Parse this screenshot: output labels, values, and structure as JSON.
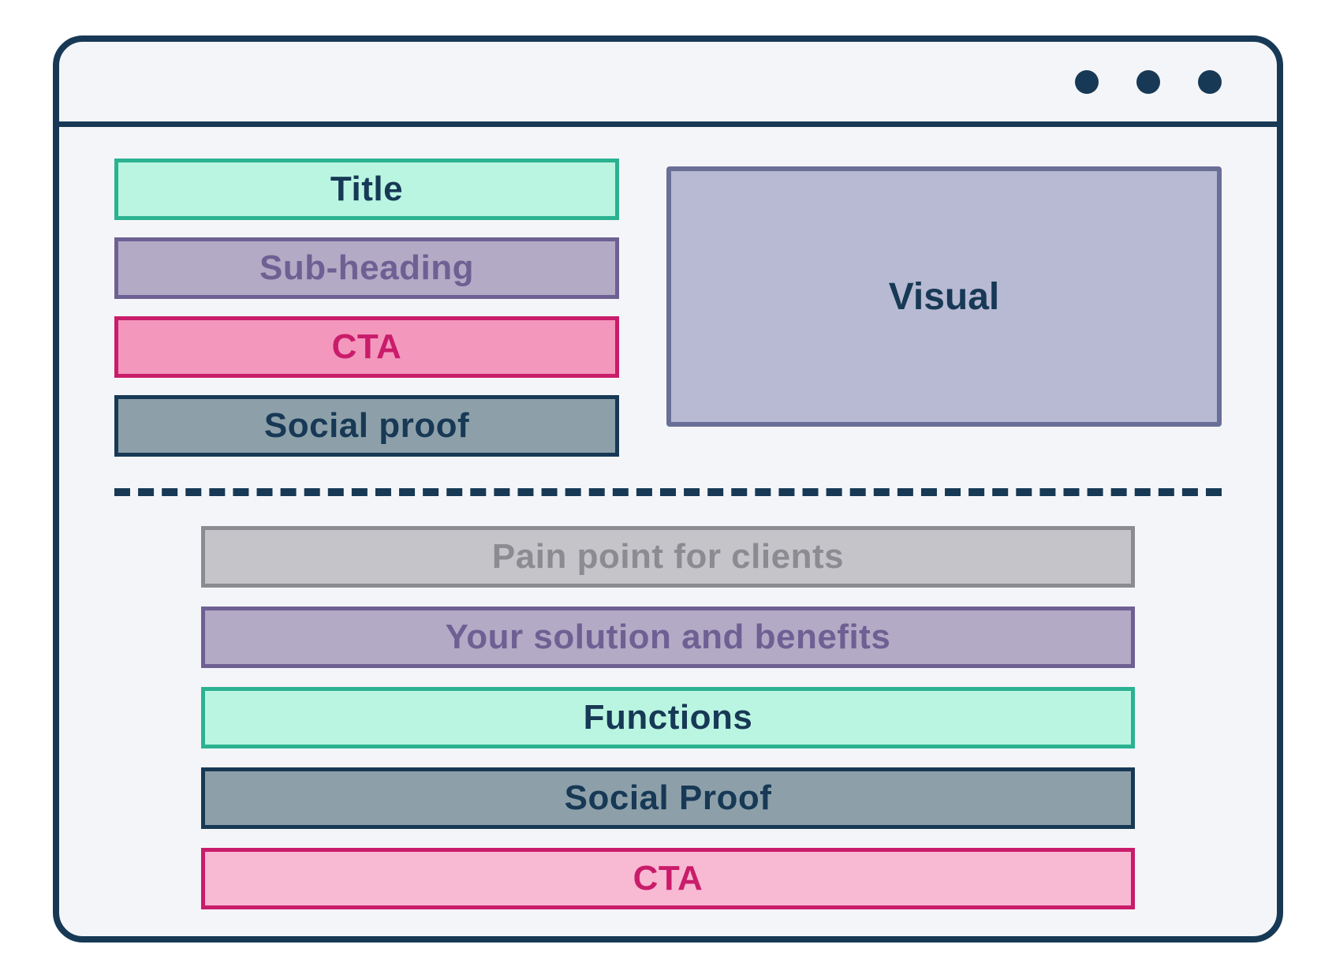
{
  "diagram": {
    "type": "wireframe",
    "background": "#ffffff",
    "window": {
      "bg": "#f4f5f8",
      "border_color": "#173955",
      "border_width": 8,
      "border_radius": 38,
      "dot_color": "#173955",
      "dot_count": 3,
      "titlebar_divider_color": "#173955"
    },
    "hero": {
      "left": [
        {
          "label": "Title",
          "bg": "#baf5e2",
          "border": "#2bb291",
          "text": "#173955"
        },
        {
          "label": "Sub-heading",
          "bg": "#b3aac6",
          "border": "#6e6093",
          "text": "#6e6093"
        },
        {
          "label": "CTA",
          "bg": "#f397bd",
          "border": "#c91c6a",
          "text": "#c91c6a"
        },
        {
          "label": "Social proof",
          "bg": "#8da0aa",
          "border": "#173955",
          "text": "#173955"
        }
      ],
      "visual": {
        "label": "Visual",
        "bg": "#b7bad2",
        "border": "#6a6f97",
        "text": "#173955"
      }
    },
    "divider": {
      "style": "dashed",
      "color": "#173955",
      "thickness": 10
    },
    "below": [
      {
        "label": "Pain point for clients",
        "bg": "#c4c4c9",
        "border": "#8b8b91",
        "text": "#8b8b91"
      },
      {
        "label": "Your solution and benefits",
        "bg": "#b3aac6",
        "border": "#6e6093",
        "text": "#6e6093"
      },
      {
        "label": "Functions",
        "bg": "#baf5e2",
        "border": "#2bb291",
        "text": "#173955"
      },
      {
        "label": "Social Proof",
        "bg": "#8da0aa",
        "border": "#173955",
        "text": "#173955"
      },
      {
        "label": "CTA",
        "bg": "#f8b9d3",
        "border": "#c91c6a",
        "text": "#c91c6a"
      }
    ],
    "typography": {
      "block_fontsize": 44,
      "visual_fontsize": 48,
      "font_weight": 700
    }
  }
}
